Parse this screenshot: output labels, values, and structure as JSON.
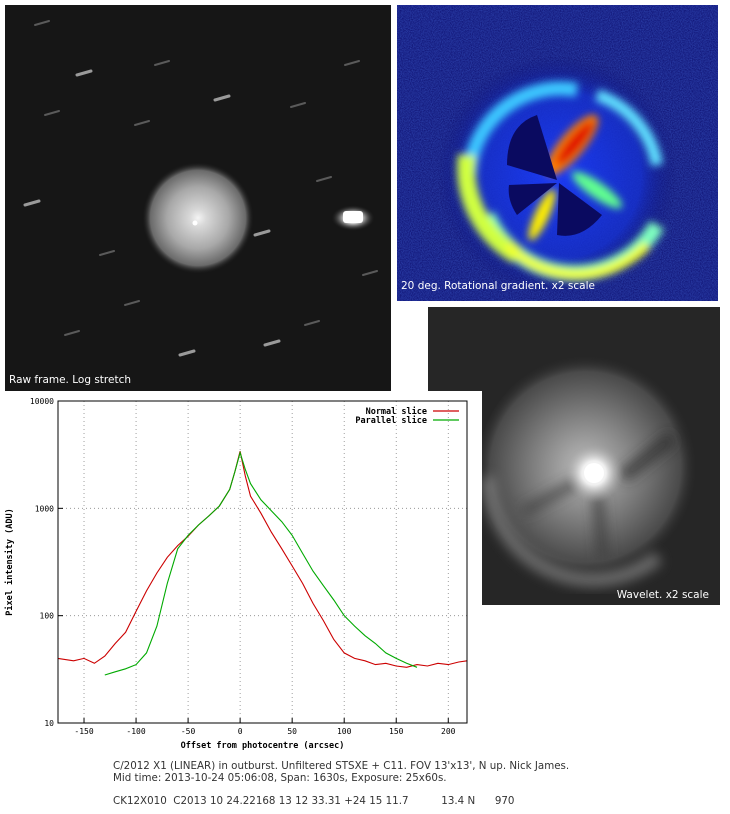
{
  "panels": {
    "raw": {
      "caption": "Raw frame. Log stretch"
    },
    "gradient": {
      "caption": "20 deg. Rotational gradient. x2 scale"
    },
    "wavelet": {
      "caption": "Wavelet. x2 scale"
    }
  },
  "chart_data": {
    "type": "line",
    "title": "",
    "xlabel": "Offset from photocentre (arcsec)",
    "ylabel": "Pixel intensity (ADU)",
    "xlim": [
      -175,
      218
    ],
    "ylim": [
      10,
      10000
    ],
    "yscale": "log",
    "grid": true,
    "legend_position": "top-right",
    "x_ticks": [
      -150,
      -100,
      -50,
      0,
      50,
      100,
      150,
      200
    ],
    "y_ticks": [
      10,
      100,
      1000,
      10000
    ],
    "series": [
      {
        "name": "Normal slice",
        "color": "#cc0000",
        "x": [
          -175,
          -160,
          -150,
          -140,
          -130,
          -120,
          -110,
          -100,
          -90,
          -80,
          -70,
          -60,
          -50,
          -40,
          -30,
          -20,
          -10,
          -5,
          0,
          5,
          10,
          20,
          30,
          40,
          50,
          60,
          70,
          80,
          90,
          100,
          110,
          120,
          130,
          140,
          150,
          160,
          170,
          180,
          190,
          200,
          210,
          218
        ],
        "y": [
          40,
          38,
          40,
          36,
          42,
          55,
          70,
          110,
          170,
          250,
          350,
          450,
          550,
          700,
          850,
          1050,
          1500,
          2200,
          3400,
          2000,
          1300,
          900,
          600,
          420,
          290,
          200,
          130,
          90,
          60,
          45,
          40,
          38,
          35,
          36,
          34,
          33,
          35,
          34,
          36,
          35,
          37,
          38
        ]
      },
      {
        "name": "Parallel slice",
        "color": "#00aa00",
        "x": [
          -130,
          -120,
          -110,
          -100,
          -90,
          -80,
          -70,
          -60,
          -50,
          -40,
          -30,
          -20,
          -10,
          -5,
          0,
          5,
          10,
          20,
          30,
          40,
          50,
          60,
          70,
          80,
          90,
          100,
          110,
          120,
          130,
          140,
          150,
          160,
          170
        ],
        "y": [
          28,
          30,
          32,
          35,
          45,
          80,
          200,
          420,
          560,
          700,
          850,
          1050,
          1500,
          2200,
          3300,
          2300,
          1700,
          1200,
          950,
          750,
          560,
          380,
          260,
          190,
          140,
          100,
          80,
          65,
          55,
          45,
          40,
          36,
          33
        ]
      }
    ]
  },
  "footer": {
    "line1": "C/2012 X1 (LINEAR) in outburst. Unfiltered STSXE + C11. FOV 13'x13', N up. Nick James.",
    "line2": "Mid time: 2013-10-24 05:06:08, Span: 1630s, Exposure: 25x60s.",
    "obs_line": "CK12X010  C2013 10 24.22168 13 12 33.31 +24 15 11.7          13.4 N      970"
  }
}
